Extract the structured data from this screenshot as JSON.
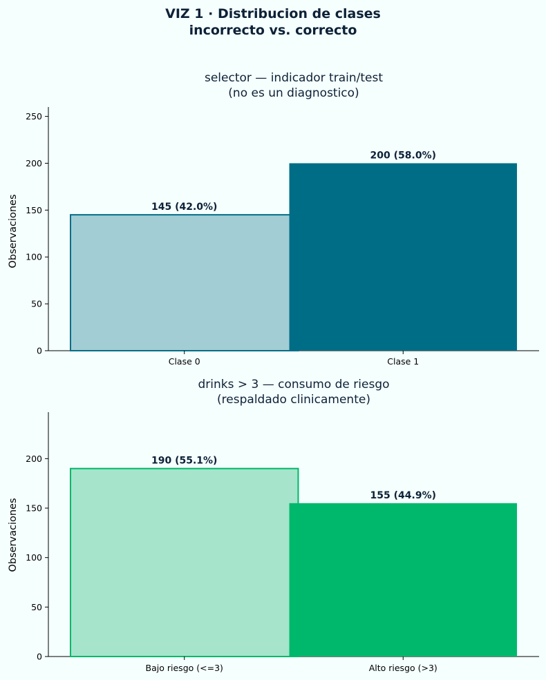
{
  "suptitle": [
    "VIZ 1 · Distribucion de clases",
    "incorrecto vs. correcto"
  ],
  "chart_data": [
    {
      "type": "bar",
      "title": [
        "selector — indicador train/test",
        "(no es un diagnostico)"
      ],
      "xlabel": "",
      "ylabel": "Observaciones",
      "categories": [
        "Clase 0",
        "Clase 1"
      ],
      "values": [
        145,
        200
      ],
      "labels": [
        "145  (42.0%)",
        "200  (58.0%)"
      ],
      "yticks": [
        0,
        50,
        100,
        150,
        200,
        250
      ],
      "ylim": [
        0,
        260
      ],
      "colors": [
        "#A3CDD4",
        "#006D87"
      ],
      "edge_color": "#006D87",
      "grid": false
    },
    {
      "type": "bar",
      "title": [
        "drinks > 3 — consumo de riesgo",
        "(respaldado clinicamente)"
      ],
      "xlabel": "",
      "ylabel": "Observaciones",
      "categories": [
        "Bajo riesgo (<=3)",
        "Alto riesgo (>3)"
      ],
      "values": [
        190,
        155
      ],
      "labels": [
        "190  (55.1%)",
        "155  (44.9%)"
      ],
      "yticks": [
        0,
        50,
        100,
        150,
        200
      ],
      "ylim": [
        0,
        247
      ],
      "colors": [
        "#A6E4CB",
        "#00B86B"
      ],
      "edge_color": "#00B86B",
      "grid": false
    }
  ]
}
